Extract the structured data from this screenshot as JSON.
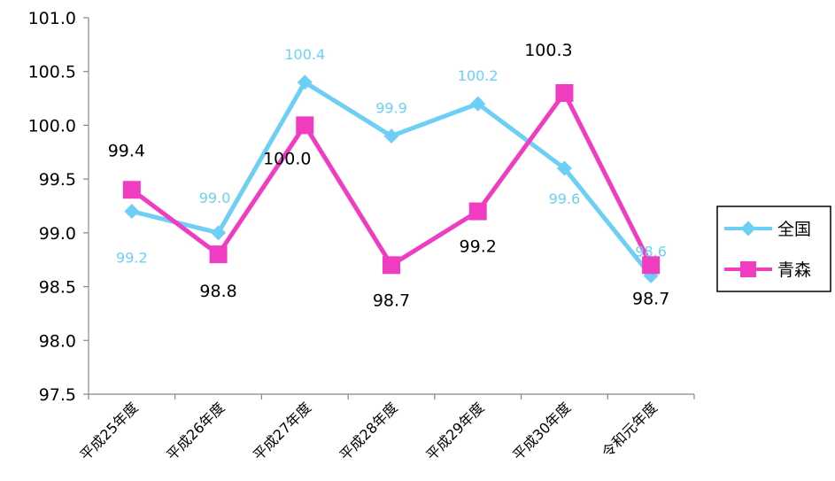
{
  "chart_data": {
    "type": "line",
    "categories": [
      "平成25年度",
      "平成26年度",
      "平成27年度",
      "平成28年度",
      "平成29年度",
      "平成30年度",
      "令和元年度"
    ],
    "series": [
      {
        "name": "全国",
        "values": [
          99.2,
          99.0,
          100.4,
          99.9,
          100.2,
          99.6,
          98.6
        ],
        "labels": [
          "99.2",
          "99.0",
          "100.4",
          "99.9",
          "100.2",
          "99.6",
          "98.6"
        ],
        "color": "#6ECFF6",
        "marker": "diamond"
      },
      {
        "name": "青森",
        "values": [
          99.4,
          98.8,
          100.0,
          98.7,
          99.2,
          100.3,
          98.7
        ],
        "labels": [
          "99.4",
          "98.8",
          "100.0",
          "98.7",
          "99.2",
          "100.3",
          "98.7"
        ],
        "color": "#F03CC0",
        "marker": "square"
      }
    ],
    "ylim": [
      97.5,
      101.0
    ],
    "yticks": [
      "97.5",
      "98.0",
      "98.5",
      "99.0",
      "99.5",
      "100.0",
      "100.5",
      "101.0"
    ],
    "grid": false,
    "legend": "right"
  }
}
